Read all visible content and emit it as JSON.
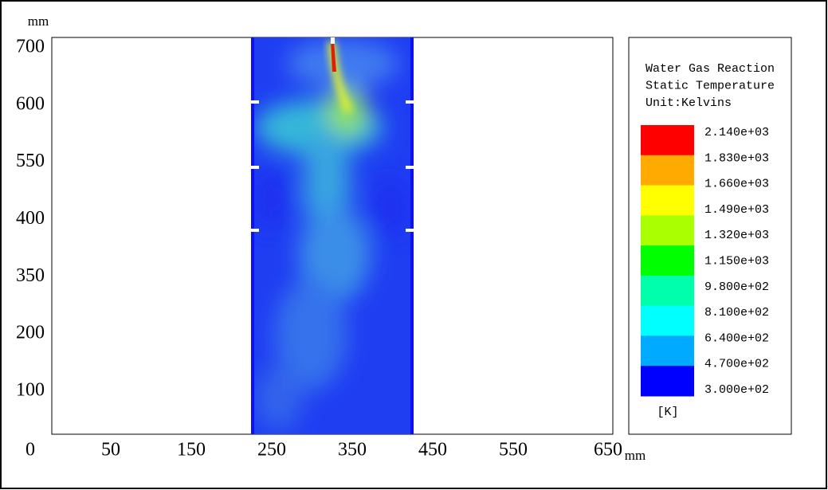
{
  "y_axis": {
    "unit": "mm",
    "labels": [
      "700",
      "600",
      "550",
      "400",
      "350",
      "200",
      "100"
    ]
  },
  "x_axis": {
    "unit": "mm",
    "labels": [
      "0",
      "50",
      "150",
      "250",
      "350",
      "450",
      "550",
      "650"
    ]
  },
  "legend": {
    "title": [
      "Water Gas Reaction",
      "Static Temperature",
      "Unit:Kelvins"
    ],
    "levels": [
      "2.140e+03",
      "1.830e+03",
      "1.660e+03",
      "1.490e+03",
      "1.320e+03",
      "1.150e+03",
      "9.800e+02",
      "8.100e+02",
      "6.400e+02",
      "4.700e+02",
      "3.000e+02"
    ],
    "colors": [
      "#ff0000",
      "#ffaa00",
      "#ffff00",
      "#aaff00",
      "#00ff00",
      "#00ffaa",
      "#00ffff",
      "#00aaff",
      "#0000ff"
    ],
    "unit": "[K]"
  }
}
